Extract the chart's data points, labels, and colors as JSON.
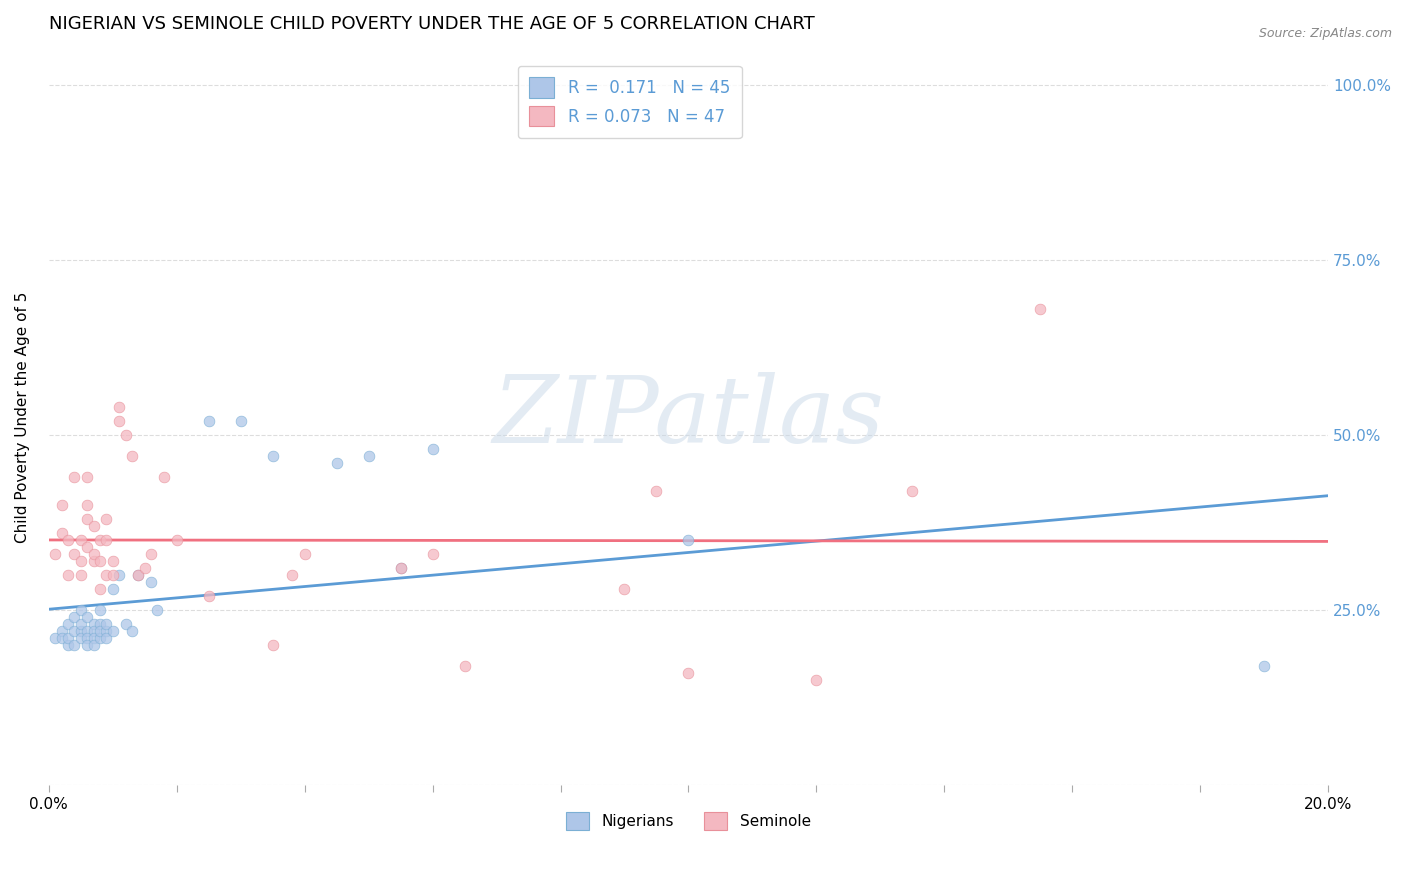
{
  "title": "NIGERIAN VS SEMINOLE CHILD POVERTY UNDER THE AGE OF 5 CORRELATION CHART",
  "source": "Source: ZipAtlas.com",
  "ylabel": "Child Poverty Under the Age of 5",
  "xlim": [
    0.0,
    0.2
  ],
  "ylim": [
    0.0,
    1.05
  ],
  "ytick_positions": [
    0.0,
    0.25,
    0.5,
    0.75,
    1.0
  ],
  "ytick_labels_right": [
    "",
    "25.0%",
    "50.0%",
    "75.0%",
    "100.0%"
  ],
  "background_color": "#ffffff",
  "watermark": "ZIPatlas",
  "nigerian_color": "#aec6e8",
  "nigerian_edge": "#7bafd4",
  "seminole_color": "#f4b8c1",
  "seminole_edge": "#e8909a",
  "nigerian_line_color": "#5b9bd5",
  "seminole_line_color": "#f07080",
  "nigerian_R": "0.171",
  "nigerian_N": "45",
  "seminole_R": "0.073",
  "seminole_N": "47",
  "marker_size": 60,
  "marker_alpha": 0.75,
  "title_fontsize": 13,
  "axis_label_fontsize": 11,
  "tick_fontsize": 11,
  "grid_color": "#dddddd",
  "right_ytick_color": "#5b9bd5",
  "nigerian_x": [
    0.001,
    0.002,
    0.002,
    0.003,
    0.003,
    0.003,
    0.004,
    0.004,
    0.004,
    0.005,
    0.005,
    0.005,
    0.005,
    0.006,
    0.006,
    0.006,
    0.006,
    0.007,
    0.007,
    0.007,
    0.007,
    0.008,
    0.008,
    0.008,
    0.008,
    0.009,
    0.009,
    0.009,
    0.01,
    0.01,
    0.011,
    0.012,
    0.013,
    0.014,
    0.016,
    0.017,
    0.025,
    0.03,
    0.035,
    0.045,
    0.05,
    0.055,
    0.06,
    0.1,
    0.19
  ],
  "nigerian_y": [
    0.21,
    0.22,
    0.21,
    0.2,
    0.23,
    0.21,
    0.22,
    0.24,
    0.2,
    0.22,
    0.25,
    0.21,
    0.23,
    0.22,
    0.21,
    0.24,
    0.2,
    0.23,
    0.22,
    0.21,
    0.2,
    0.25,
    0.23,
    0.21,
    0.22,
    0.22,
    0.23,
    0.21,
    0.28,
    0.22,
    0.3,
    0.23,
    0.22,
    0.3,
    0.29,
    0.25,
    0.52,
    0.52,
    0.47,
    0.46,
    0.47,
    0.31,
    0.48,
    0.35,
    0.17
  ],
  "seminole_x": [
    0.001,
    0.002,
    0.002,
    0.003,
    0.003,
    0.004,
    0.004,
    0.005,
    0.005,
    0.005,
    0.006,
    0.006,
    0.006,
    0.006,
    0.007,
    0.007,
    0.007,
    0.008,
    0.008,
    0.008,
    0.009,
    0.009,
    0.009,
    0.01,
    0.01,
    0.011,
    0.011,
    0.012,
    0.013,
    0.014,
    0.015,
    0.016,
    0.018,
    0.02,
    0.025,
    0.035,
    0.038,
    0.04,
    0.055,
    0.06,
    0.065,
    0.09,
    0.095,
    0.1,
    0.12,
    0.135,
    0.155
  ],
  "seminole_y": [
    0.33,
    0.36,
    0.4,
    0.3,
    0.35,
    0.44,
    0.33,
    0.35,
    0.3,
    0.32,
    0.38,
    0.4,
    0.34,
    0.44,
    0.32,
    0.37,
    0.33,
    0.32,
    0.35,
    0.28,
    0.3,
    0.35,
    0.38,
    0.32,
    0.3,
    0.54,
    0.52,
    0.5,
    0.47,
    0.3,
    0.31,
    0.33,
    0.44,
    0.35,
    0.27,
    0.2,
    0.3,
    0.33,
    0.31,
    0.33,
    0.17,
    0.28,
    0.42,
    0.16,
    0.15,
    0.42,
    0.68
  ]
}
